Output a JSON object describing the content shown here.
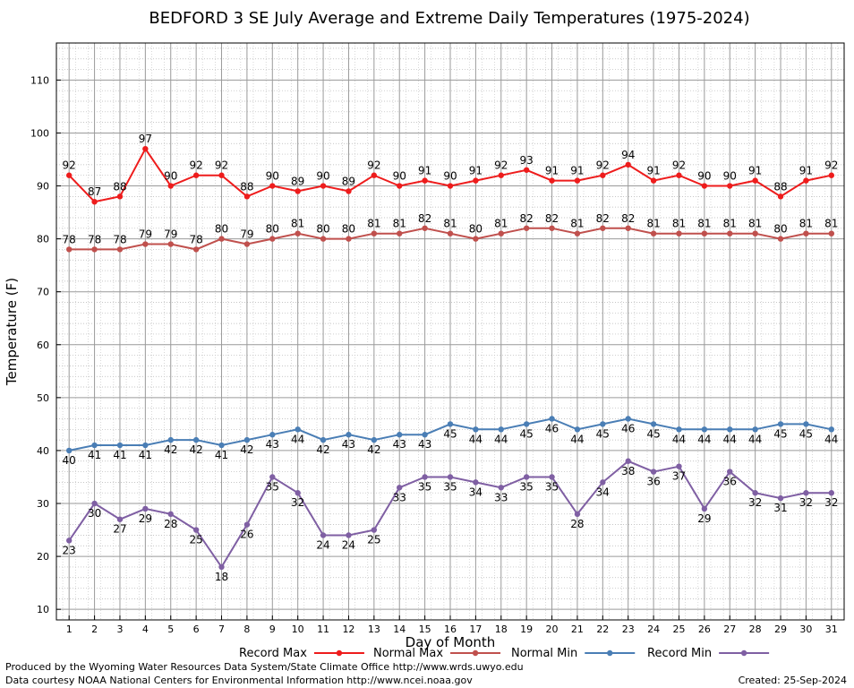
{
  "footer": {
    "produced_by": "Produced by the Wyoming Water Resources Data System/State Climate Office http://www.wrds.uwyo.edu",
    "data_courtesy": "Data courtesy NOAA National Centers for Environmental Information http://www.ncei.noaa.gov",
    "created": "Created: 25-Sep-2024"
  },
  "chart_data": {
    "type": "line",
    "title": "BEDFORD 3 SE July Average and Extreme Daily Temperatures (1975-2024)",
    "xlabel": "Day of Month",
    "ylabel": "Temperature (F)",
    "xlim": [
      0.5,
      31.5
    ],
    "ylim": [
      8,
      117
    ],
    "yticks": [
      10,
      20,
      30,
      40,
      50,
      60,
      70,
      80,
      90,
      100,
      110
    ],
    "x": [
      1,
      2,
      3,
      4,
      5,
      6,
      7,
      8,
      9,
      10,
      11,
      12,
      13,
      14,
      15,
      16,
      17,
      18,
      19,
      20,
      21,
      22,
      23,
      24,
      25,
      26,
      27,
      28,
      29,
      30,
      31
    ],
    "grid": true,
    "legend_position": "bottom",
    "series": [
      {
        "name": "Record Max",
        "color": "#ee1c1c",
        "label_position": "above",
        "values": [
          92,
          87,
          88,
          97,
          90,
          92,
          92,
          88,
          90,
          89,
          90,
          89,
          92,
          90,
          91,
          90,
          91,
          92,
          93,
          91,
          91,
          92,
          94,
          91,
          92,
          90,
          90,
          91,
          88,
          91,
          92
        ]
      },
      {
        "name": "Normal Max",
        "color": "#c0504d",
        "label_position": "above",
        "values": [
          78,
          78,
          78,
          79,
          79,
          78,
          80,
          79,
          80,
          81,
          80,
          80,
          81,
          81,
          82,
          81,
          80,
          81,
          82,
          82,
          81,
          82,
          82,
          81,
          81,
          81,
          81,
          81,
          80,
          81,
          81
        ]
      },
      {
        "name": "Normal Min",
        "color": "#4a7eb5",
        "label_position": "below",
        "values": [
          40,
          41,
          41,
          41,
          42,
          42,
          41,
          42,
          43,
          44,
          42,
          43,
          42,
          43,
          43,
          45,
          44,
          44,
          45,
          46,
          44,
          45,
          46,
          45,
          44,
          44,
          44,
          44,
          45,
          45,
          44
        ]
      },
      {
        "name": "Record Min",
        "color": "#7f5fa3",
        "label_position": "below",
        "values": [
          23,
          30,
          27,
          29,
          28,
          25,
          18,
          26,
          35,
          32,
          24,
          24,
          25,
          33,
          35,
          35,
          34,
          33,
          35,
          35,
          28,
          34,
          38,
          36,
          37,
          29,
          36,
          32,
          31,
          32,
          32
        ]
      }
    ]
  }
}
